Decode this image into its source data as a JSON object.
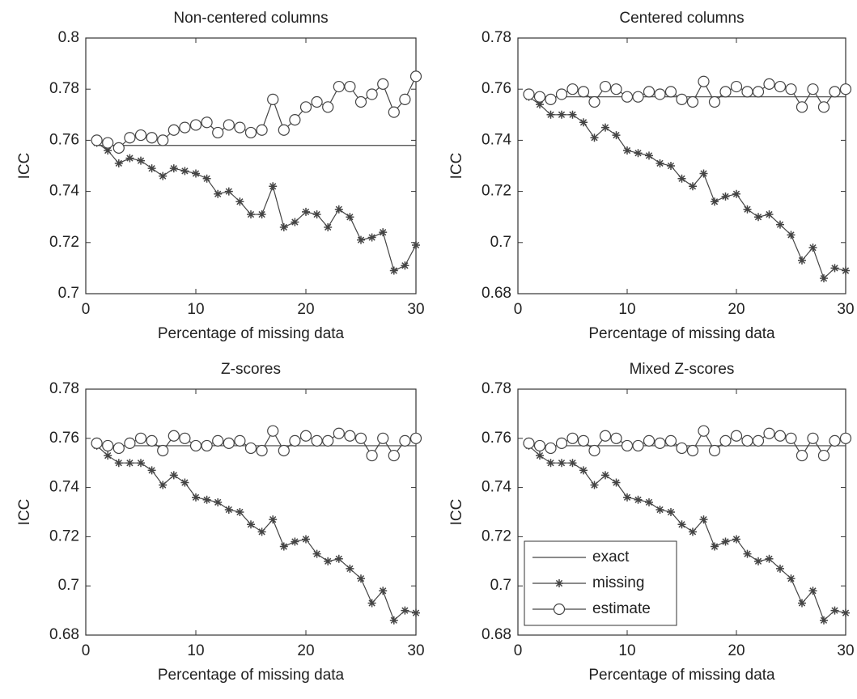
{
  "chart_data": [
    {
      "type": "line",
      "title": "Non-centered columns",
      "xlabel": "Percentage of missing data",
      "ylabel": "ICC",
      "x": [
        1,
        2,
        3,
        4,
        5,
        6,
        7,
        8,
        9,
        10,
        11,
        12,
        13,
        14,
        15,
        16,
        17,
        18,
        19,
        20,
        21,
        22,
        23,
        24,
        25,
        26,
        27,
        28,
        29,
        30
      ],
      "xlim": [
        0,
        30
      ],
      "xticks": [
        0,
        10,
        20,
        30
      ],
      "ylim": [
        0.7,
        0.8
      ],
      "yticks": [
        0.7,
        0.72,
        0.74,
        0.76,
        0.78,
        0.8
      ],
      "series": [
        {
          "color": "#444444",
          "marker": "none",
          "values": [
            0.758,
            0.758,
            0.758,
            0.758,
            0.758,
            0.758,
            0.758,
            0.758,
            0.758,
            0.758,
            0.758,
            0.758,
            0.758,
            0.758,
            0.758,
            0.758,
            0.758,
            0.758,
            0.758,
            0.758,
            0.758,
            0.758,
            0.758,
            0.758,
            0.758,
            0.758,
            0.758,
            0.758,
            0.758,
            0.758
          ]
        },
        {
          "color": "#444444",
          "marker": "star",
          "values": [
            0.759,
            0.756,
            0.751,
            0.753,
            0.752,
            0.749,
            0.746,
            0.749,
            0.748,
            0.747,
            0.745,
            0.739,
            0.74,
            0.736,
            0.731,
            0.731,
            0.742,
            0.726,
            0.728,
            0.732,
            0.731,
            0.726,
            0.733,
            0.73,
            0.721,
            0.722,
            0.724,
            0.709,
            0.711,
            0.719
          ]
        },
        {
          "color": "#444444",
          "marker": "circle",
          "values": [
            0.76,
            0.759,
            0.757,
            0.761,
            0.762,
            0.761,
            0.76,
            0.764,
            0.765,
            0.766,
            0.767,
            0.763,
            0.766,
            0.765,
            0.763,
            0.764,
            0.776,
            0.764,
            0.768,
            0.773,
            0.775,
            0.773,
            0.781,
            0.781,
            0.775,
            0.778,
            0.782,
            0.771,
            0.776,
            0.785
          ]
        }
      ]
    },
    {
      "type": "line",
      "title": "Centered columns",
      "xlabel": "Percentage of missing data",
      "ylabel": "ICC",
      "x": [
        1,
        2,
        3,
        4,
        5,
        6,
        7,
        8,
        9,
        10,
        11,
        12,
        13,
        14,
        15,
        16,
        17,
        18,
        19,
        20,
        21,
        22,
        23,
        24,
        25,
        26,
        27,
        28,
        29,
        30
      ],
      "xlim": [
        0,
        30
      ],
      "xticks": [
        0,
        10,
        20,
        30
      ],
      "ylim": [
        0.68,
        0.78
      ],
      "yticks": [
        0.68,
        0.7,
        0.72,
        0.74,
        0.76,
        0.78
      ],
      "series": [
        {
          "color": "#444444",
          "marker": "none",
          "values": [
            0.757,
            0.757,
            0.757,
            0.757,
            0.757,
            0.757,
            0.757,
            0.757,
            0.757,
            0.757,
            0.757,
            0.757,
            0.757,
            0.757,
            0.757,
            0.757,
            0.757,
            0.757,
            0.757,
            0.757,
            0.757,
            0.757,
            0.757,
            0.757,
            0.757,
            0.757,
            0.757,
            0.757,
            0.757,
            0.757
          ]
        },
        {
          "color": "#444444",
          "marker": "star",
          "values": [
            0.757,
            0.754,
            0.75,
            0.75,
            0.75,
            0.747,
            0.741,
            0.745,
            0.742,
            0.736,
            0.735,
            0.734,
            0.731,
            0.73,
            0.725,
            0.722,
            0.727,
            0.716,
            0.718,
            0.719,
            0.713,
            0.71,
            0.711,
            0.707,
            0.703,
            0.693,
            0.698,
            0.686,
            0.69,
            0.689
          ]
        },
        {
          "color": "#444444",
          "marker": "circle",
          "values": [
            0.758,
            0.757,
            0.756,
            0.758,
            0.76,
            0.759,
            0.755,
            0.761,
            0.76,
            0.757,
            0.757,
            0.759,
            0.758,
            0.759,
            0.756,
            0.755,
            0.763,
            0.755,
            0.759,
            0.761,
            0.759,
            0.759,
            0.762,
            0.761,
            0.76,
            0.753,
            0.76,
            0.753,
            0.759,
            0.76
          ]
        }
      ]
    },
    {
      "type": "line",
      "title": "Z-scores",
      "xlabel": "Percentage of missing data",
      "ylabel": "ICC",
      "x": [
        1,
        2,
        3,
        4,
        5,
        6,
        7,
        8,
        9,
        10,
        11,
        12,
        13,
        14,
        15,
        16,
        17,
        18,
        19,
        20,
        21,
        22,
        23,
        24,
        25,
        26,
        27,
        28,
        29,
        30
      ],
      "xlim": [
        0,
        30
      ],
      "xticks": [
        0,
        10,
        20,
        30
      ],
      "ylim": [
        0.68,
        0.78
      ],
      "yticks": [
        0.68,
        0.7,
        0.72,
        0.74,
        0.76,
        0.78
      ],
      "series": [
        {
          "color": "#444444",
          "marker": "none",
          "values": [
            0.757,
            0.757,
            0.757,
            0.757,
            0.757,
            0.757,
            0.757,
            0.757,
            0.757,
            0.757,
            0.757,
            0.757,
            0.757,
            0.757,
            0.757,
            0.757,
            0.757,
            0.757,
            0.757,
            0.757,
            0.757,
            0.757,
            0.757,
            0.757,
            0.757,
            0.757,
            0.757,
            0.757,
            0.757,
            0.757
          ]
        },
        {
          "color": "#444444",
          "marker": "star",
          "values": [
            0.757,
            0.753,
            0.75,
            0.75,
            0.75,
            0.747,
            0.741,
            0.745,
            0.742,
            0.736,
            0.735,
            0.734,
            0.731,
            0.73,
            0.725,
            0.722,
            0.727,
            0.716,
            0.718,
            0.719,
            0.713,
            0.71,
            0.711,
            0.707,
            0.703,
            0.693,
            0.698,
            0.686,
            0.69,
            0.689
          ]
        },
        {
          "color": "#444444",
          "marker": "circle",
          "values": [
            0.758,
            0.757,
            0.756,
            0.758,
            0.76,
            0.759,
            0.755,
            0.761,
            0.76,
            0.757,
            0.757,
            0.759,
            0.758,
            0.759,
            0.756,
            0.755,
            0.763,
            0.755,
            0.759,
            0.761,
            0.759,
            0.759,
            0.762,
            0.761,
            0.76,
            0.753,
            0.76,
            0.753,
            0.759,
            0.76
          ]
        }
      ]
    },
    {
      "type": "line",
      "title": "Mixed Z-scores",
      "xlabel": "Percentage of missing data",
      "ylabel": "ICC",
      "legend": "lower left",
      "x": [
        1,
        2,
        3,
        4,
        5,
        6,
        7,
        8,
        9,
        10,
        11,
        12,
        13,
        14,
        15,
        16,
        17,
        18,
        19,
        20,
        21,
        22,
        23,
        24,
        25,
        26,
        27,
        28,
        29,
        30
      ],
      "xlim": [
        0,
        30
      ],
      "xticks": [
        0,
        10,
        20,
        30
      ],
      "ylim": [
        0.68,
        0.78
      ],
      "yticks": [
        0.68,
        0.7,
        0.72,
        0.74,
        0.76,
        0.78
      ],
      "series": [
        {
          "name": "exact",
          "color": "#444444",
          "marker": "none",
          "values": [
            0.757,
            0.757,
            0.757,
            0.757,
            0.757,
            0.757,
            0.757,
            0.757,
            0.757,
            0.757,
            0.757,
            0.757,
            0.757,
            0.757,
            0.757,
            0.757,
            0.757,
            0.757,
            0.757,
            0.757,
            0.757,
            0.757,
            0.757,
            0.757,
            0.757,
            0.757,
            0.757,
            0.757,
            0.757,
            0.757
          ]
        },
        {
          "name": "missing",
          "color": "#444444",
          "marker": "star",
          "values": [
            0.757,
            0.753,
            0.75,
            0.75,
            0.75,
            0.747,
            0.741,
            0.745,
            0.742,
            0.736,
            0.735,
            0.734,
            0.731,
            0.73,
            0.725,
            0.722,
            0.727,
            0.716,
            0.718,
            0.719,
            0.713,
            0.71,
            0.711,
            0.707,
            0.703,
            0.693,
            0.698,
            0.686,
            0.69,
            0.689
          ]
        },
        {
          "name": "estimate",
          "color": "#444444",
          "marker": "circle",
          "values": [
            0.758,
            0.757,
            0.756,
            0.758,
            0.76,
            0.759,
            0.755,
            0.761,
            0.76,
            0.757,
            0.757,
            0.759,
            0.758,
            0.759,
            0.756,
            0.755,
            0.763,
            0.755,
            0.759,
            0.761,
            0.759,
            0.759,
            0.762,
            0.761,
            0.76,
            0.753,
            0.76,
            0.753,
            0.759,
            0.76
          ]
        }
      ]
    }
  ]
}
